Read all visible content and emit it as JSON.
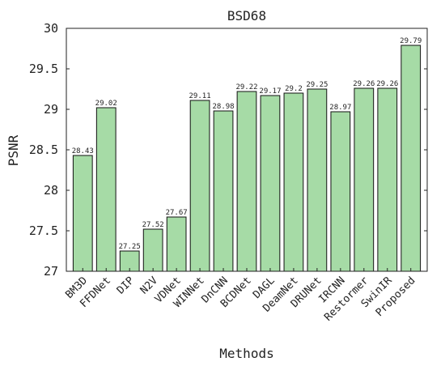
{
  "chart_data": {
    "type": "bar",
    "title": "BSD68",
    "xlabel": "Methods",
    "ylabel": "PSNR",
    "ylim": [
      27,
      30
    ],
    "yticks": [
      "27",
      "27.5",
      "28",
      "28.5",
      "29",
      "29.5",
      "30"
    ],
    "grid": false,
    "categories": [
      "BM3D",
      "FFDNet",
      "DIP",
      "N2V",
      "VDNet",
      "WINNet",
      "DnCNN",
      "BCDNet",
      "DAGL",
      "DeamNet",
      "DRUNet",
      "IRCNN",
      "Restormer",
      "SwinIR",
      "Proposed"
    ],
    "values": [
      28.43,
      29.02,
      27.25,
      27.52,
      27.67,
      29.11,
      28.98,
      29.22,
      29.17,
      29.2,
      29.25,
      28.97,
      29.26,
      29.26,
      29.79
    ],
    "data_labels": [
      "28.43",
      "29.02",
      "27.25",
      "27.52",
      "27.67",
      "29.11",
      "28.98",
      "29.22",
      "29.17",
      "29.2",
      "29.25",
      "28.97",
      "29.26",
      "29.26",
      "29.79"
    ],
    "bar_color": "#a6dba6",
    "edge_color": "#111111"
  }
}
